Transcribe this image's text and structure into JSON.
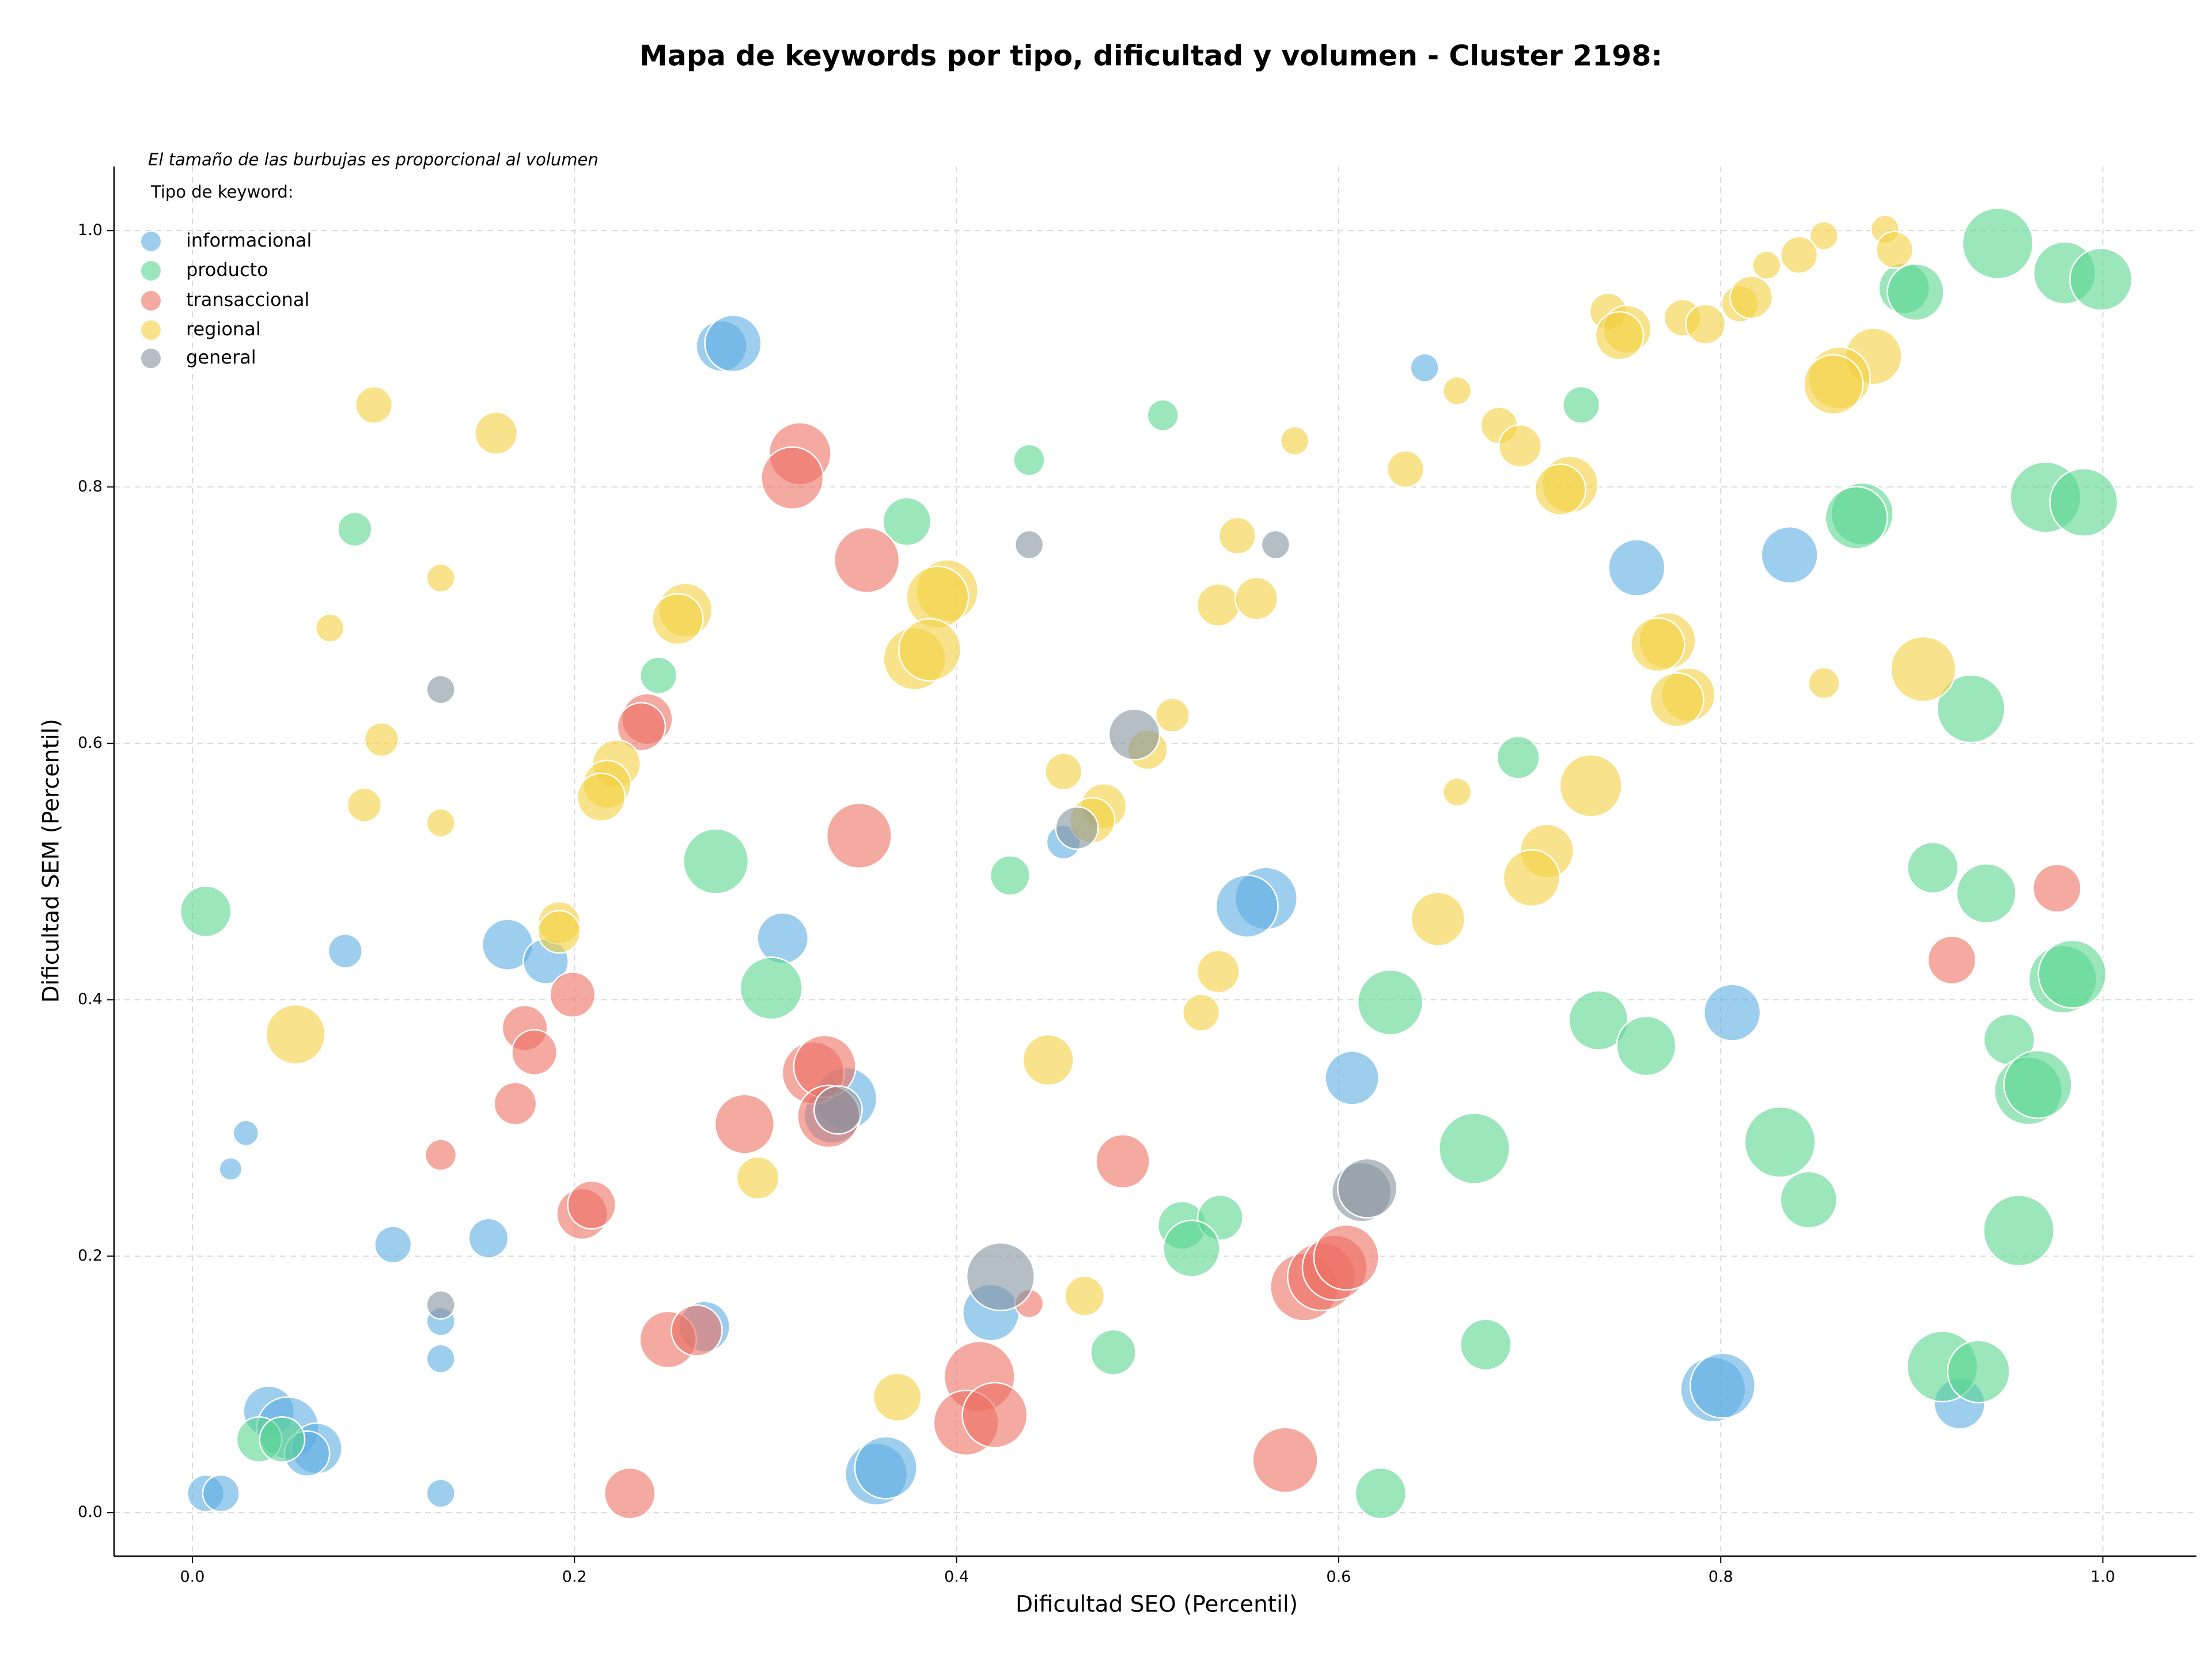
{
  "chart_data": {
    "type": "scatter",
    "title": "Mapa de keywords por tipo, dificultad y volumen - Cluster 2198:",
    "x_label": "Dificultad SEO (Percentil)",
    "y_label": "Dificultad SEM (Percentil)",
    "annotation": "El tamaño de las burbujas es proporcional al volumen",
    "legend_title": "Tipo de keyword:",
    "legend_position": "upper left",
    "grid": true,
    "xlim": [
      -0.041,
      1.049
    ],
    "ylim": [
      -0.034,
      1.05
    ],
    "xticks": [
      {
        "value": 0,
        "label": "0.0"
      },
      0.2,
      0.4,
      0.6,
      0.8,
      {
        "value": 1,
        "label": "1.0"
      }
    ],
    "yticks": [
      {
        "value": 0,
        "label": "0.0"
      },
      0.2,
      0.4,
      0.6,
      0.8,
      {
        "value": 1,
        "label": "1.0"
      }
    ],
    "series": [
      {
        "name": "informacional",
        "color": "#5dade2",
        "x": [
          0.277,
          0.283,
          0.645,
          0.756,
          0.836,
          0.562,
          0.552,
          0.309,
          0.165,
          0.185,
          0.08,
          0.806,
          0.607,
          0.342,
          0.335,
          0.028,
          0.02,
          0.105,
          0.155,
          0.13,
          0.13,
          0.13,
          0.418,
          0.268,
          0.04,
          0.05,
          0.065,
          0.06,
          0.007,
          0.015,
          0.358,
          0.363,
          0.796,
          0.801,
          0.925,
          0.456
        ],
        "values": [
          0.91,
          0.912,
          0.893,
          0.737,
          0.747,
          0.479,
          0.473,
          0.448,
          0.443,
          0.43,
          0.438,
          0.39,
          0.339,
          0.323,
          0.31,
          0.296,
          0.268,
          0.209,
          0.214,
          0.149,
          0.12,
          0.015,
          0.156,
          0.145,
          0.079,
          0.066,
          0.05,
          0.046,
          0.015,
          0.015,
          0.03,
          0.035,
          0.096,
          0.099,
          0.085,
          0.523
        ],
        "sizes": [
          324,
          400,
          100,
          400,
          400,
          484,
          484,
          324,
          324,
          256,
          144,
          400,
          361,
          484,
          400,
          81,
          64,
          169,
          196,
          100,
          100,
          100,
          400,
          324,
          324,
          484,
          324,
          256,
          169,
          169,
          484,
          484,
          529,
          529,
          324,
          144
        ]
      },
      {
        "name": "producto",
        "color": "#58d68d",
        "x": [
          0.945,
          0.98,
          0.999,
          0.896,
          0.902,
          0.727,
          0.508,
          0.438,
          0.374,
          0.085,
          0.874,
          0.871,
          0.97,
          0.99,
          0.244,
          0.931,
          0.694,
          0.274,
          0.428,
          0.911,
          0.939,
          0.007,
          0.303,
          0.627,
          0.979,
          0.984,
          0.736,
          0.761,
          0.951,
          0.961,
          0.966,
          0.671,
          0.831,
          0.846,
          0.956,
          0.518,
          0.538,
          0.523,
          0.482,
          0.677,
          0.916,
          0.935,
          0.035,
          0.047,
          0.622
        ],
        "values": [
          0.99,
          0.967,
          0.962,
          0.955,
          0.952,
          0.864,
          0.856,
          0.821,
          0.773,
          0.767,
          0.779,
          0.776,
          0.792,
          0.788,
          0.653,
          0.627,
          0.589,
          0.508,
          0.497,
          0.503,
          0.483,
          0.469,
          0.409,
          0.398,
          0.416,
          0.42,
          0.384,
          0.364,
          0.369,
          0.329,
          0.334,
          0.284,
          0.289,
          0.244,
          0.22,
          0.224,
          0.23,
          0.206,
          0.125,
          0.131,
          0.114,
          0.11,
          0.057,
          0.057,
          0.015
        ],
        "sizes": [
          625,
          484,
          484,
          324,
          400,
          169,
          121,
          121,
          289,
          144,
          484,
          484,
          625,
          576,
          169,
          576,
          225,
          529,
          196,
          324,
          441,
          324,
          484,
          529,
          576,
          576,
          441,
          441,
          324,
          576,
          576,
          625,
          625,
          400,
          625,
          289,
          256,
          400,
          256,
          324,
          625,
          484,
          256,
          256,
          324
        ]
      },
      {
        "name": "transaccional",
        "color": "#ec7063",
        "x": [
          0.318,
          0.314,
          0.353,
          0.238,
          0.235,
          0.349,
          0.199,
          0.174,
          0.179,
          0.169,
          0.325,
          0.331,
          0.333,
          0.289,
          0.13,
          0.487,
          0.204,
          0.209,
          0.249,
          0.264,
          0.438,
          0.412,
          0.405,
          0.42,
          0.229,
          0.572,
          0.582,
          0.591,
          0.598,
          0.604,
          0.976,
          0.921
        ],
        "values": [
          0.826,
          0.807,
          0.743,
          0.619,
          0.613,
          0.528,
          0.404,
          0.378,
          0.359,
          0.319,
          0.343,
          0.348,
          0.309,
          0.303,
          0.279,
          0.274,
          0.233,
          0.24,
          0.135,
          0.142,
          0.163,
          0.106,
          0.07,
          0.076,
          0.015,
          0.041,
          0.176,
          0.184,
          0.191,
          0.199,
          0.487,
          0.431
        ],
        "sizes": [
          484,
          484,
          529,
          324,
          289,
          529,
          256,
          256,
          256,
          225,
          484,
          484,
          484,
          441,
          121,
          361,
          324,
          289,
          400,
          324,
          100,
          625,
          529,
          529,
          324,
          529,
          576,
          576,
          529,
          529,
          289,
          289
        ]
      },
      {
        "name": "regional",
        "color": "#f4d03f",
        "x": [
          0.886,
          0.854,
          0.841,
          0.824,
          0.891,
          0.741,
          0.751,
          0.747,
          0.78,
          0.792,
          0.81,
          0.816,
          0.88,
          0.862,
          0.859,
          0.662,
          0.635,
          0.684,
          0.695,
          0.721,
          0.716,
          0.095,
          0.159,
          0.577,
          0.13,
          0.072,
          0.547,
          0.537,
          0.557,
          0.258,
          0.254,
          0.395,
          0.39,
          0.378,
          0.386,
          0.772,
          0.767,
          0.783,
          0.777,
          0.906,
          0.854,
          0.099,
          0.13,
          0.09,
          0.513,
          0.5,
          0.222,
          0.217,
          0.214,
          0.456,
          0.662,
          0.732,
          0.477,
          0.471,
          0.709,
          0.701,
          0.192,
          0.192,
          0.652,
          0.537,
          0.528,
          0.054,
          0.448,
          0.296,
          0.467,
          0.369
        ],
        "values": [
          1.001,
          0.996,
          0.981,
          0.973,
          0.985,
          0.937,
          0.923,
          0.918,
          0.932,
          0.927,
          0.943,
          0.948,
          0.902,
          0.885,
          0.88,
          0.875,
          0.814,
          0.848,
          0.832,
          0.802,
          0.798,
          0.864,
          0.842,
          0.836,
          0.729,
          0.69,
          0.762,
          0.708,
          0.713,
          0.704,
          0.697,
          0.719,
          0.714,
          0.666,
          0.673,
          0.68,
          0.677,
          0.638,
          0.634,
          0.658,
          0.647,
          0.603,
          0.538,
          0.552,
          0.622,
          0.595,
          0.584,
          0.568,
          0.558,
          0.578,
          0.562,
          0.567,
          0.551,
          0.54,
          0.516,
          0.495,
          0.46,
          0.453,
          0.463,
          0.422,
          0.39,
          0.373,
          0.353,
          0.261,
          0.169,
          0.09
        ],
        "sizes": [
          100,
          100,
          169,
          100,
          169,
          169,
          289,
          289,
          169,
          196,
          169,
          225,
          400,
          484,
          441,
          100,
          169,
          169,
          225,
          400,
          324,
          169,
          225,
          100,
          100,
          100,
          169,
          225,
          225,
          361,
          324,
          484,
          484,
          484,
          484,
          400,
          361,
          361,
          361,
          529,
          121,
          144,
          100,
          144,
          144,
          196,
          289,
          289,
          289,
          169,
          100,
          484,
          256,
          256,
          361,
          400,
          225,
          225,
          361,
          225,
          169,
          441,
          324,
          225,
          196,
          289
        ]
      },
      {
        "name": "general",
        "color": "#85929e",
        "x": [
          0.438,
          0.567,
          0.13,
          0.493,
          0.463,
          0.612,
          0.615,
          0.423,
          0.13,
          0.338
        ],
        "values": [
          0.755,
          0.755,
          0.642,
          0.607,
          0.534,
          0.25,
          0.253,
          0.184,
          0.162,
          0.314
        ],
        "sizes": [
          100,
          100,
          100,
          324,
          225,
          441,
          441,
          576,
          100,
          289
        ]
      }
    ]
  }
}
